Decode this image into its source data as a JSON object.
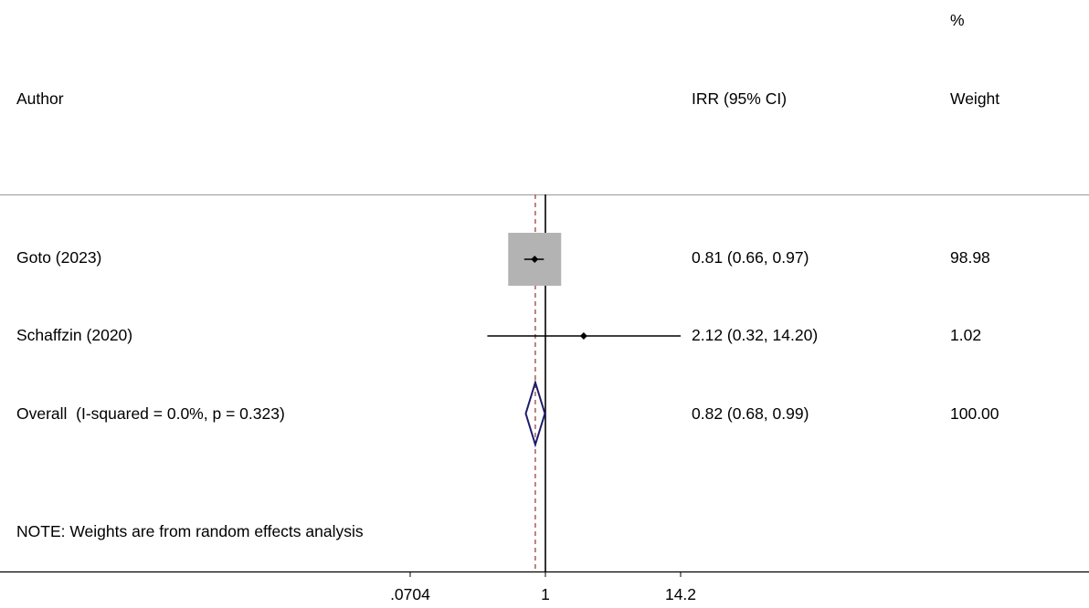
{
  "headers": {
    "author": "Author",
    "effect": "IRR (95% CI)",
    "weight_pct": "%",
    "weight": "Weight"
  },
  "note": "NOTE: Weights are from random effects analysis",
  "colors": {
    "reference_line": "#000000",
    "overall_line": "#a0524a",
    "weight_box": "#b3b3b3",
    "diamond": "#1c1c6b",
    "text": "#000000"
  },
  "chart_data": {
    "type": "forest",
    "measure": "IRR",
    "scale": "log",
    "null_value": 1,
    "overall_estimate": 0.82,
    "xticks": [
      {
        "value": 0.0704,
        "label": ".0704"
      },
      {
        "value": 1,
        "label": "1"
      },
      {
        "value": 14.2,
        "label": "14.2"
      }
    ],
    "studies": [
      {
        "author": "Goto (2023)",
        "irr": 0.81,
        "lower": 0.66,
        "upper": 0.97,
        "ci_text": "0.81 (0.66, 0.97)",
        "weight": 98.98,
        "weight_text": "98.98"
      },
      {
        "author": "Schaffzin (2020)",
        "irr": 2.12,
        "lower": 0.32,
        "upper": 14.2,
        "ci_text": "2.12 (0.32, 14.20)",
        "weight": 1.02,
        "weight_text": "1.02"
      }
    ],
    "overall": {
      "label": "Overall  (I-squared = 0.0%, p = 0.323)",
      "irr": 0.82,
      "lower": 0.68,
      "upper": 0.99,
      "ci_text": "0.82 (0.68, 0.99)",
      "weight": 100.0,
      "weight_text": "100.00"
    }
  }
}
